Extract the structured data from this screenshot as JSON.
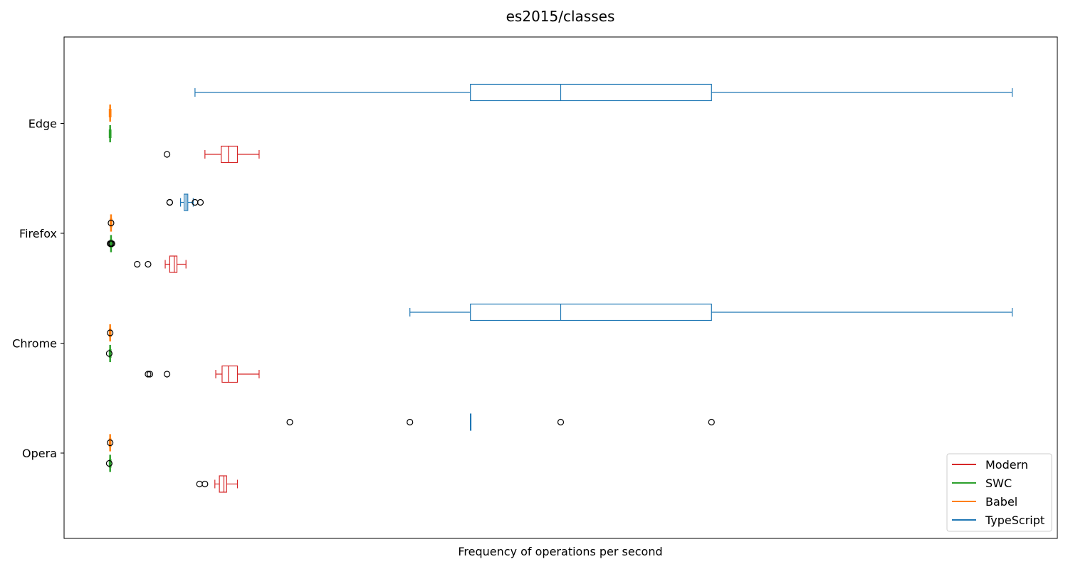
{
  "chart_data": {
    "type": "boxplot",
    "orientation": "horizontal",
    "title": "es2015/classes",
    "xlabel": "Frequency of operations per second",
    "ylabel": "",
    "x_ticks_visible": false,
    "xlim": [
      -0.05,
      1.05
    ],
    "grid": false,
    "legend": {
      "position": "bottom-right",
      "entries": [
        {
          "name": "Modern",
          "color": "#d62728"
        },
        {
          "name": "SWC",
          "color": "#2ca02c"
        },
        {
          "name": "Babel",
          "color": "#ff7f0e"
        },
        {
          "name": "TypeScript",
          "color": "#1f77b4"
        }
      ]
    },
    "categories": [
      "Opera",
      "Chrome",
      "Firefox",
      "Edge"
    ],
    "series": [
      {
        "name": "Modern",
        "color": "#d62728",
        "boxes": [
          {
            "whislo": 0.117,
            "q1": 0.122,
            "med": 0.127,
            "q3": 0.13,
            "whishi": 0.142,
            "fliers": [
              0.1,
              0.106
            ]
          },
          {
            "whislo": 0.118,
            "q1": 0.125,
            "med": 0.132,
            "q3": 0.142,
            "whishi": 0.166,
            "fliers": [
              0.043,
              0.045,
              0.064
            ]
          },
          {
            "whislo": 0.062,
            "q1": 0.067,
            "med": 0.072,
            "q3": 0.075,
            "whishi": 0.085,
            "fliers": [
              0.031,
              0.043
            ]
          },
          {
            "whislo": 0.106,
            "q1": 0.124,
            "med": 0.132,
            "q3": 0.142,
            "whishi": 0.166,
            "fliers": [
              0.064
            ]
          }
        ]
      },
      {
        "name": "SWC",
        "color": "#2ca02c",
        "boxes": [
          {
            "whislo": 0.0,
            "q1": 0.0005,
            "med": 0.001,
            "q3": 0.0015,
            "whishi": 0.002,
            "fliers": [
              0.0
            ]
          },
          {
            "whislo": 0.0,
            "q1": 0.0005,
            "med": 0.001,
            "q3": 0.0015,
            "whishi": 0.002,
            "fliers": [
              0.0
            ]
          },
          {
            "whislo": 0.001,
            "q1": 0.0015,
            "med": 0.002,
            "q3": 0.0025,
            "whishi": 0.003,
            "fliers": [
              0.001,
              0.002,
              0.003
            ]
          },
          {
            "whislo": 0.0,
            "q1": 0.0005,
            "med": 0.001,
            "q3": 0.0015,
            "whishi": 0.002,
            "fliers": []
          }
        ]
      },
      {
        "name": "Babel",
        "color": "#ff7f0e",
        "boxes": [
          {
            "whislo": 0.0,
            "q1": 0.0005,
            "med": 0.001,
            "q3": 0.0015,
            "whishi": 0.002,
            "fliers": [
              0.001
            ]
          },
          {
            "whislo": 0.0,
            "q1": 0.0005,
            "med": 0.001,
            "q3": 0.0015,
            "whishi": 0.002,
            "fliers": [
              0.001
            ]
          },
          {
            "whislo": 0.001,
            "q1": 0.0015,
            "med": 0.002,
            "q3": 0.0025,
            "whishi": 0.003,
            "fliers": [
              0.002
            ]
          },
          {
            "whislo": 0.0,
            "q1": 0.0005,
            "med": 0.001,
            "q3": 0.0015,
            "whishi": 0.002,
            "fliers": []
          }
        ]
      },
      {
        "name": "TypeScript",
        "color": "#1f77b4",
        "boxes": [
          {
            "whislo": 0.4,
            "q1": 0.4,
            "med": 0.4,
            "q3": 0.4,
            "whishi": 0.4,
            "fliers": [
              0.2,
              0.333,
              0.5,
              0.667
            ]
          },
          {
            "whislo": 0.333,
            "q1": 0.4,
            "med": 0.5,
            "q3": 0.667,
            "whishi": 1.0,
            "fliers": []
          },
          {
            "whislo": 0.079,
            "q1": 0.083,
            "med": 0.085,
            "q3": 0.087,
            "whishi": 0.093,
            "fliers": [
              0.067,
              0.067,
              0.095,
              0.101
            ]
          },
          {
            "whislo": 0.095,
            "q1": 0.4,
            "med": 0.5,
            "q3": 0.667,
            "whishi": 1.0,
            "fliers": []
          }
        ]
      }
    ]
  }
}
